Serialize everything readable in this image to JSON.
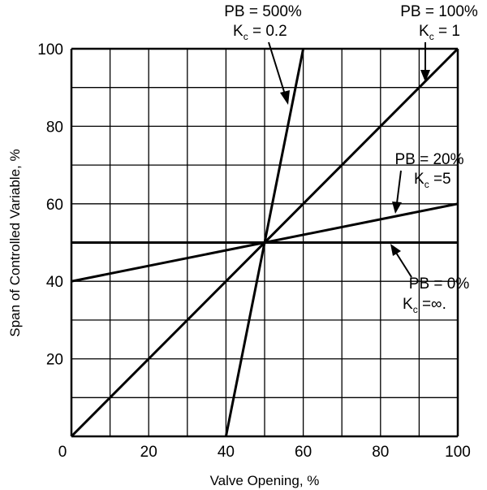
{
  "chart_data": {
    "type": "line",
    "xlabel": "Valve Opening, %",
    "ylabel": "Span of Controlled Variable, %",
    "xlim": [
      0,
      100
    ],
    "ylim": [
      0,
      100
    ],
    "grid": true,
    "x_ticks": [
      0,
      20,
      40,
      60,
      80,
      100
    ],
    "y_ticks": [
      20,
      40,
      60,
      80,
      100
    ],
    "grid_step": 10,
    "series": [
      {
        "name": "PB = 500%",
        "kc_label": "Kc = 0.2",
        "x": [
          40,
          60
        ],
        "y": [
          0,
          100
        ]
      },
      {
        "name": "PB = 100%",
        "kc_label": "Kc = 1",
        "x": [
          0,
          100
        ],
        "y": [
          0,
          100
        ]
      },
      {
        "name": "PB = 20%",
        "kc_label": "Kc =5",
        "x": [
          0,
          100
        ],
        "y": [
          40,
          60
        ]
      },
      {
        "name": "PB = 0%",
        "kc_label": "Kc =∞.",
        "x": [
          0,
          100
        ],
        "y": [
          50,
          50
        ]
      }
    ],
    "annotations": [
      {
        "line1": "PB = 500%",
        "k": "K",
        "sub": "c",
        "rest": " = 0.2"
      },
      {
        "line1": "PB = 100%",
        "k": "K",
        "sub": "c",
        "rest": " = 1"
      },
      {
        "line1": "PB = 20%",
        "k": "K",
        "sub": "c",
        "rest": " =5"
      },
      {
        "line1": "PB = 0%",
        "k": "K",
        "sub": "c",
        "rest": " =∞."
      }
    ],
    "color": "#000000"
  }
}
